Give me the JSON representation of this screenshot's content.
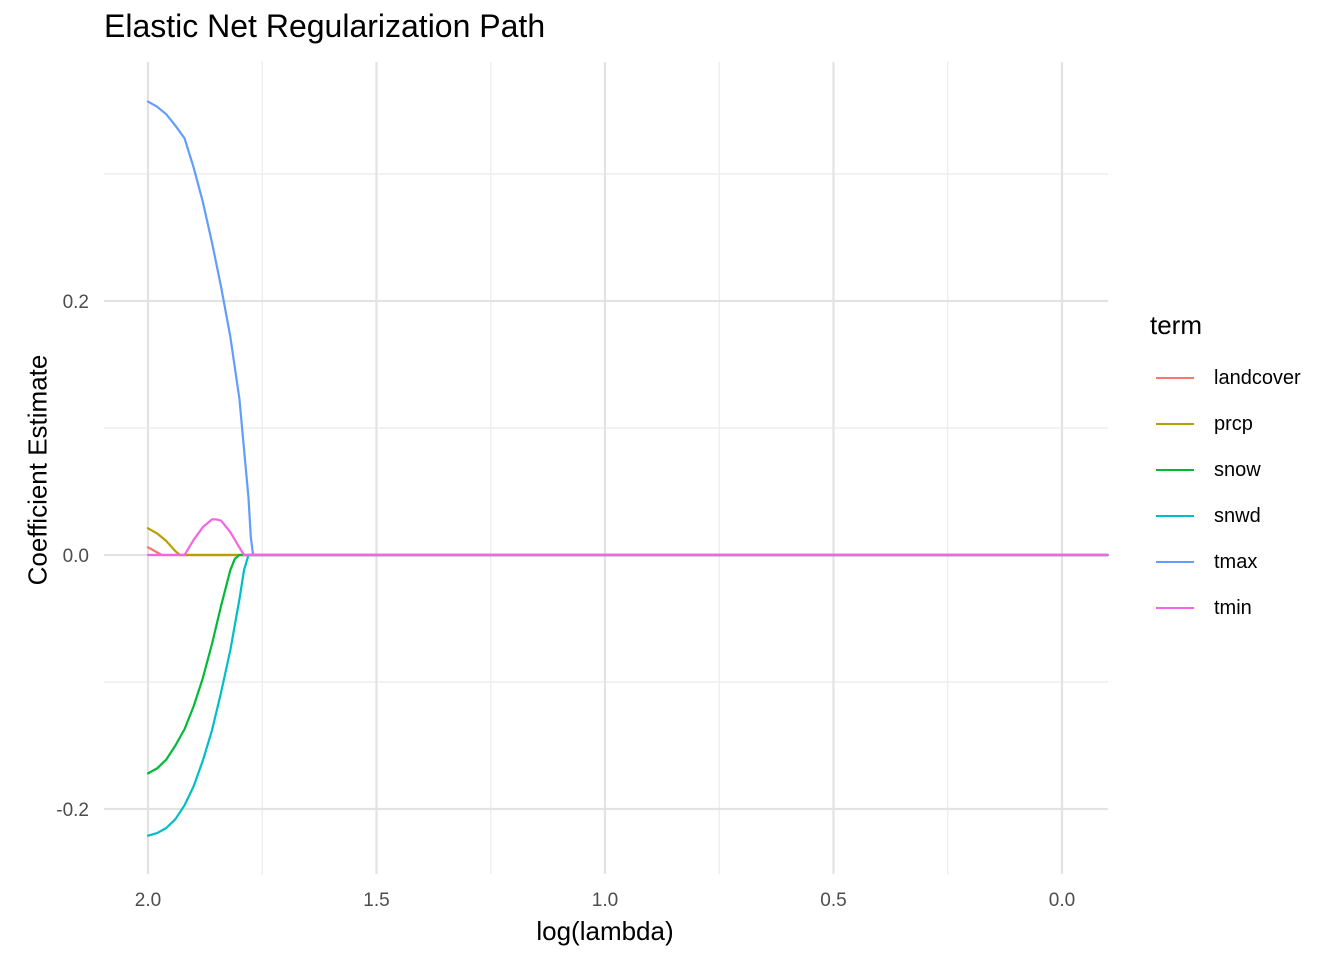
{
  "chart_data": {
    "type": "line",
    "title": "Elastic Net Regularization Path",
    "xlabel": "log(lambda)",
    "ylabel": "Coefficient Estimate",
    "x_reversed": true,
    "xlim": [
      2.0,
      -0.1
    ],
    "ylim": [
      -0.23,
      0.37
    ],
    "x_ticks": [
      2.0,
      1.5,
      1.0,
      0.5,
      0.0
    ],
    "x_tick_labels": [
      "2.0",
      "1.5",
      "1.0",
      "0.5",
      "0.0"
    ],
    "y_ticks": [
      -0.2,
      0.0,
      0.2
    ],
    "y_tick_labels": [
      "-0.2",
      "0.0",
      "0.2"
    ],
    "grid": true,
    "legend": {
      "title": "term",
      "position": "right"
    },
    "series": [
      {
        "name": "landcover",
        "color": "#F8766D",
        "x": [
          2.0,
          1.99,
          1.97,
          1.96,
          0.0,
          -0.1
        ],
        "y": [
          0.006,
          0.004,
          0.0,
          0.0,
          0.0,
          0.0
        ]
      },
      {
        "name": "prcp",
        "color": "#B79F00",
        "x": [
          2.0,
          1.98,
          1.96,
          1.94,
          1.93,
          1.92,
          0.0,
          -0.1
        ],
        "y": [
          0.021,
          0.017,
          0.011,
          0.003,
          0.0,
          0.0,
          0.0,
          0.0
        ]
      },
      {
        "name": "snow",
        "color": "#00BA38",
        "x": [
          2.0,
          1.98,
          1.96,
          1.94,
          1.92,
          1.9,
          1.88,
          1.86,
          1.84,
          1.82,
          1.81,
          1.8,
          1.79,
          0.0,
          -0.1
        ],
        "y": [
          -0.172,
          -0.168,
          -0.161,
          -0.15,
          -0.137,
          -0.119,
          -0.097,
          -0.07,
          -0.04,
          -0.012,
          -0.003,
          0.0,
          0.0,
          0.0,
          0.0
        ]
      },
      {
        "name": "snwd",
        "color": "#00BFC4",
        "x": [
          2.0,
          1.98,
          1.96,
          1.94,
          1.92,
          1.9,
          1.88,
          1.86,
          1.84,
          1.82,
          1.8,
          1.79,
          1.78,
          1.77,
          0.0,
          -0.1
        ],
        "y": [
          -0.221,
          -0.219,
          -0.215,
          -0.208,
          -0.197,
          -0.182,
          -0.162,
          -0.138,
          -0.108,
          -0.075,
          -0.035,
          -0.012,
          0.0,
          0.0,
          0.0,
          0.0
        ]
      },
      {
        "name": "tmax",
        "color": "#619CFF",
        "x": [
          2.0,
          1.98,
          1.96,
          1.94,
          1.92,
          1.9,
          1.88,
          1.86,
          1.84,
          1.82,
          1.8,
          1.78,
          1.775,
          1.77,
          0.0,
          -0.1
        ],
        "y": [
          0.357,
          0.353,
          0.347,
          0.338,
          0.328,
          0.305,
          0.278,
          0.246,
          0.211,
          0.172,
          0.123,
          0.045,
          0.014,
          0.0,
          0.0,
          0.0
        ]
      },
      {
        "name": "tmin",
        "color": "#F564E3",
        "x": [
          2.0,
          1.96,
          1.92,
          1.915,
          1.9,
          1.88,
          1.86,
          1.85,
          1.84,
          1.82,
          1.8,
          1.79,
          1.78,
          0.0,
          -0.1
        ],
        "y": [
          0.0,
          0.0,
          0.0,
          0.003,
          0.012,
          0.022,
          0.028,
          0.028,
          0.027,
          0.018,
          0.006,
          0.0,
          0.0,
          0.0,
          0.0
        ]
      }
    ]
  }
}
